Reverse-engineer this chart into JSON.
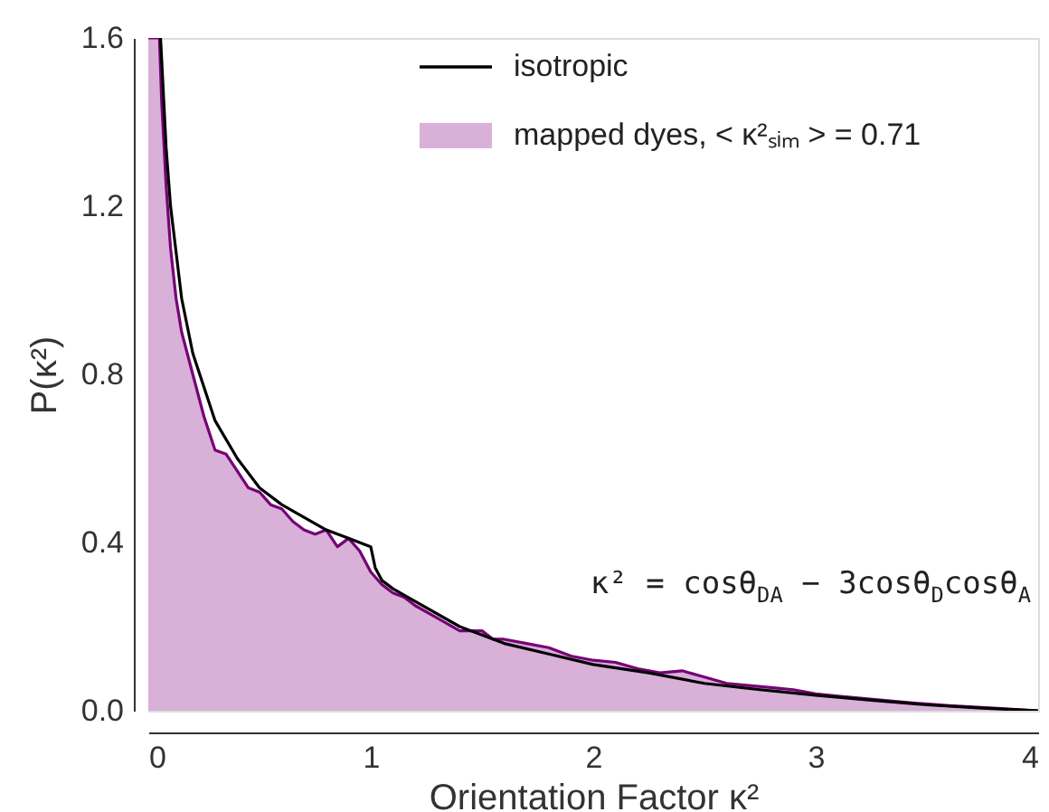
{
  "chart_data": {
    "type": "line",
    "xlabel": "Orientation Factor κ²",
    "ylabel": "P(κ²)",
    "xlim": [
      0,
      4
    ],
    "xticks": [
      0,
      1,
      2,
      3,
      4
    ],
    "ylim": [
      0,
      1.6
    ],
    "yticks": [
      {
        "value": 0,
        "label": "0.0"
      },
      0.4,
      0.8,
      1.2,
      1.6
    ],
    "grid": false,
    "legend": "top right",
    "annotations": [
      "κ² = cosθ$_{DA}$ − 3cosθ$_{D}$cosθ$_{A}$"
    ],
    "series": [
      {
        "name": "isotropic",
        "type": "line",
        "color": "#000000",
        "x": [
          0.055,
          0.06,
          0.08,
          0.1,
          0.15,
          0.2,
          0.3,
          0.4,
          0.5,
          0.6,
          0.7,
          0.8,
          0.9,
          1.0,
          1.02,
          1.05,
          1.1,
          1.2,
          1.4,
          1.6,
          1.8,
          2.0,
          2.25,
          2.5,
          2.75,
          3.0,
          3.25,
          3.5,
          3.75,
          4.0
        ],
        "values": [
          1.6,
          1.55,
          1.34,
          1.2,
          0.98,
          0.85,
          0.69,
          0.6,
          0.53,
          0.49,
          0.46,
          0.43,
          0.41,
          0.39,
          0.34,
          0.31,
          0.29,
          0.26,
          0.2,
          0.16,
          0.135,
          0.11,
          0.09,
          0.065,
          0.05,
          0.037,
          0.025,
          0.014,
          0.006,
          0.0
        ]
      },
      {
        "name": "mapped dyes,     < κ²ₛᵢₘ > = 0.71",
        "type": "area",
        "color": "#d8b0d8",
        "x": [
          0.0,
          0.05,
          0.06,
          0.08,
          0.1,
          0.125,
          0.15,
          0.2,
          0.25,
          0.3,
          0.35,
          0.4,
          0.45,
          0.5,
          0.55,
          0.6,
          0.65,
          0.7,
          0.75,
          0.8,
          0.85,
          0.9,
          0.95,
          1.0,
          1.05,
          1.1,
          1.15,
          1.2,
          1.3,
          1.4,
          1.5,
          1.55,
          1.6,
          1.7,
          1.8,
          1.9,
          2.0,
          2.1,
          2.2,
          2.3,
          2.4,
          2.5,
          2.6,
          2.7,
          2.8,
          2.9,
          3.0,
          3.1,
          3.2,
          3.4,
          3.6,
          3.8,
          4.0
        ],
        "values": [
          1.6,
          1.6,
          1.45,
          1.25,
          1.1,
          0.98,
          0.9,
          0.8,
          0.7,
          0.62,
          0.61,
          0.57,
          0.53,
          0.52,
          0.49,
          0.48,
          0.45,
          0.43,
          0.42,
          0.43,
          0.39,
          0.41,
          0.38,
          0.33,
          0.3,
          0.28,
          0.27,
          0.25,
          0.22,
          0.19,
          0.19,
          0.17,
          0.17,
          0.16,
          0.15,
          0.13,
          0.12,
          0.115,
          0.1,
          0.09,
          0.095,
          0.08,
          0.065,
          0.06,
          0.055,
          0.05,
          0.04,
          0.035,
          0.03,
          0.02,
          0.012,
          0.006,
          0.0
        ]
      }
    ]
  }
}
